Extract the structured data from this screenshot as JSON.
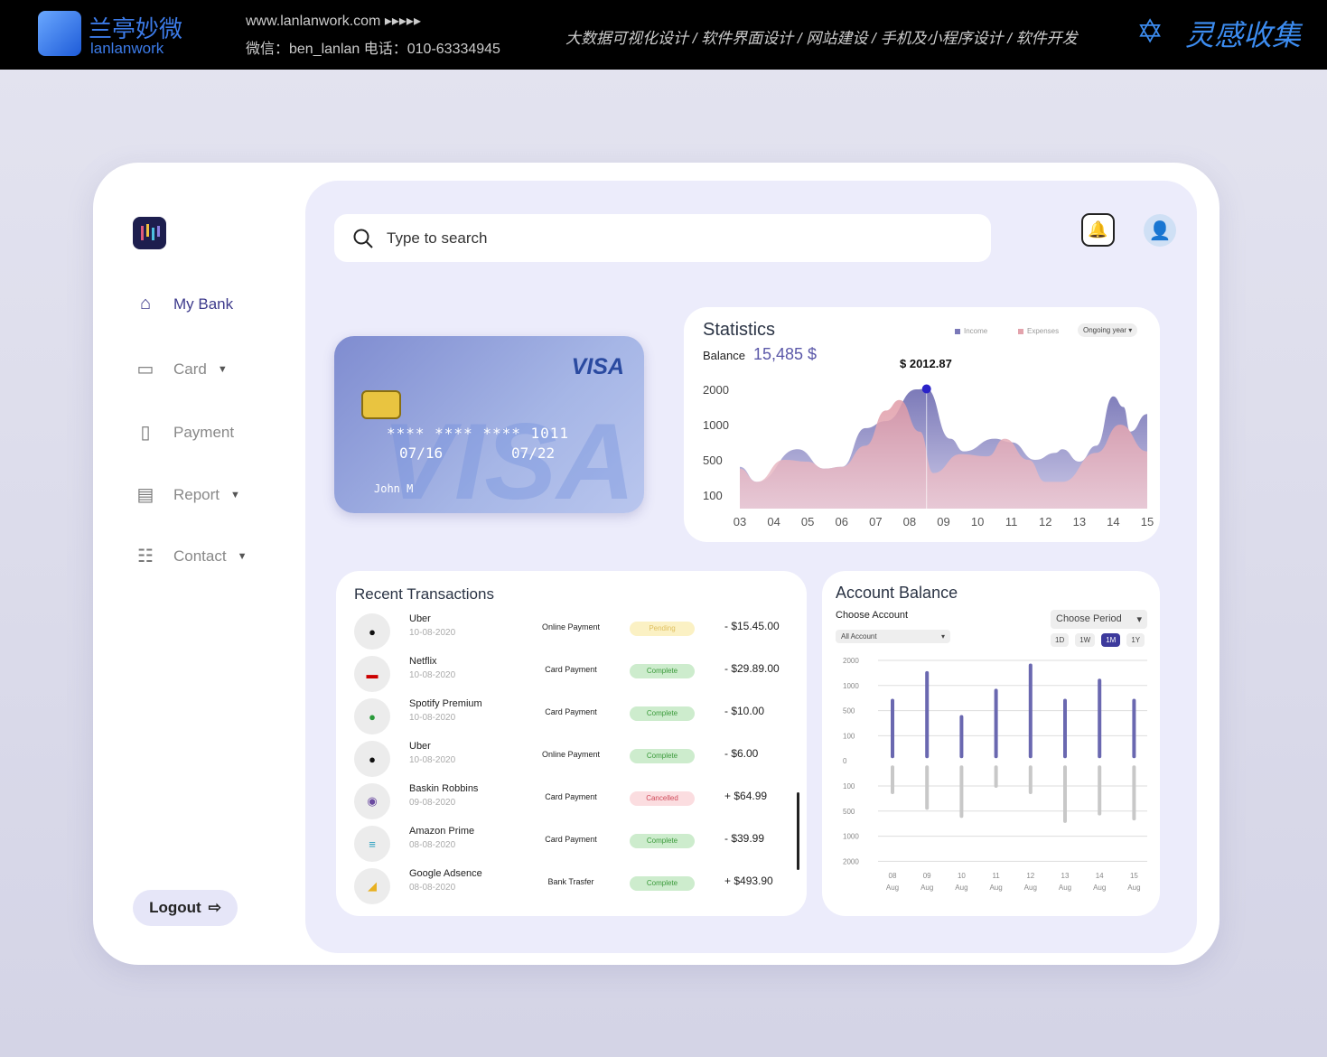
{
  "topbar": {
    "brand_cn": "兰亭妙微",
    "brand_en": "lanlanwork",
    "site": "www.lanlanwork.com  ▸▸▸▸▸",
    "contact": "微信：ben_lanlan    电话：010-63334945",
    "services": "大数据可视化设计 / 软件界面设计 / 网站建设 / 手机及小程序设计 / 软件开发",
    "tagline": "灵感收集"
  },
  "sidebar": {
    "items": [
      {
        "label": "My Bank",
        "icon": "home-icon",
        "active": true
      },
      {
        "label": "Card",
        "icon": "card-icon",
        "caret": "▼"
      },
      {
        "label": "Payment",
        "icon": "payment-icon"
      },
      {
        "label": "Report",
        "icon": "report-icon",
        "caret": "▼"
      },
      {
        "label": "Contact",
        "icon": "contact-icon",
        "caret": "▼"
      }
    ],
    "logout": "Logout"
  },
  "search": {
    "placeholder": "Type to search"
  },
  "card": {
    "brand": "VISA",
    "number": "**** **** **** 1011",
    "valid_from": "07/16",
    "valid_thru": "07/22",
    "name": "John M"
  },
  "statistics": {
    "title": "Statistics",
    "balance_label": "Balance",
    "balance": "15,485 $",
    "legend": [
      "Income",
      "Expenses"
    ],
    "period": "Ongoing year ▾",
    "tooltip": "$ 2012.87",
    "colors": {
      "income": "#7a78b8",
      "expenses": "#e3a3ac"
    }
  },
  "chart_data": [
    {
      "type": "area",
      "categories": [
        "03",
        "04",
        "05",
        "06",
        "07",
        "08",
        "09",
        "10",
        "11",
        "12",
        "13",
        "14",
        "15"
      ],
      "yticks": [
        100,
        500,
        1000,
        2000
      ],
      "series": [
        {
          "name": "Income",
          "x": [
            0,
            0.5,
            1.7,
            2.5,
            3,
            3.7,
            4.3,
            5.2,
            5.5,
            6.2,
            6.6,
            7.5,
            8,
            8.7,
            9.3,
            9.5,
            10,
            10.5,
            11,
            11.3,
            11.5,
            12
          ],
          "y": [
            420,
            250,
            650,
            400,
            420,
            950,
            1100,
            2000,
            2013,
            800,
            620,
            800,
            750,
            500,
            600,
            650,
            480,
            700,
            1800,
            1500,
            900,
            1300
          ]
        },
        {
          "name": "Expenses",
          "x": [
            0,
            0.5,
            1.3,
            2,
            2.5,
            3,
            3.7,
            4.3,
            4.7,
            5.3,
            5.7,
            6.5,
            7.3,
            7.8,
            8.5,
            9,
            9.5,
            10.5,
            11.2,
            12
          ],
          "y": [
            400,
            250,
            500,
            480,
            400,
            420,
            700,
            1400,
            1700,
            900,
            350,
            580,
            550,
            800,
            500,
            250,
            250,
            600,
            1000,
            620
          ]
        }
      ]
    },
    {
      "type": "bar",
      "categories": [
        "08 Aug",
        "09 Aug",
        "10 Aug",
        "11 Aug",
        "12 Aug",
        "13 Aug",
        "14 Aug",
        "15 Aug"
      ],
      "yticks": [
        2000,
        1000,
        500,
        100,
        0,
        -100,
        -500,
        -1000,
        -2000
      ],
      "ytick_labels": [
        "2000",
        "1000",
        "500",
        "100",
        "0",
        "100",
        "500",
        "1000",
        "2000"
      ],
      "series": [
        {
          "values": [
            700,
            1500,
            400,
            900,
            1800,
            700,
            1200,
            700
          ],
          "color": "#6a68b0"
        },
        {
          "values": [
            -200,
            -450,
            -600,
            -100,
            -200,
            -700,
            -550,
            -650
          ],
          "color": "#c8c8c8"
        }
      ]
    }
  ],
  "recent": {
    "title": "Recent Transactions",
    "rows": [
      {
        "name": "Uber",
        "date": "10-08-2020",
        "type": "Online Payment",
        "status": "Pending",
        "amount": "- $15.45.00",
        "icon": "uber-icon"
      },
      {
        "name": "Netflix",
        "date": "10-08-2020",
        "type": "Card Payment",
        "status": "Complete",
        "amount": "- $29.89.00",
        "icon": "netflix-icon"
      },
      {
        "name": "Spotify Premium",
        "date": "10-08-2020",
        "type": "Card Payment",
        "status": "Complete",
        "amount": "- $10.00",
        "icon": "spotify-icon"
      },
      {
        "name": "Uber",
        "date": "10-08-2020",
        "type": "Online Payment",
        "status": "Complete",
        "amount": "- $6.00",
        "icon": "uber-icon"
      },
      {
        "name": "Baskin Robbins",
        "date": "09-08-2020",
        "type": "Card Payment",
        "status": "Cancelled",
        "amount": "+ $64.99",
        "icon": "baskin-robbins-icon"
      },
      {
        "name": "Amazon Prime",
        "date": "08-08-2020",
        "type": "Card Payment",
        "status": "Complete",
        "amount": "- $39.99",
        "icon": "amazon-prime-icon"
      },
      {
        "name": "Google Adsence",
        "date": "08-08-2020",
        "type": "Bank Trasfer",
        "status": "Complete",
        "amount": "+ $493.90",
        "icon": "google-adsense-icon"
      }
    ]
  },
  "account": {
    "title": "Account Balance",
    "choose_account": "Choose Account",
    "account_value": "All Account",
    "period": "Choose Period",
    "ranges": [
      "1D",
      "1W",
      "1M",
      "1Y"
    ],
    "active_range": "1M"
  }
}
